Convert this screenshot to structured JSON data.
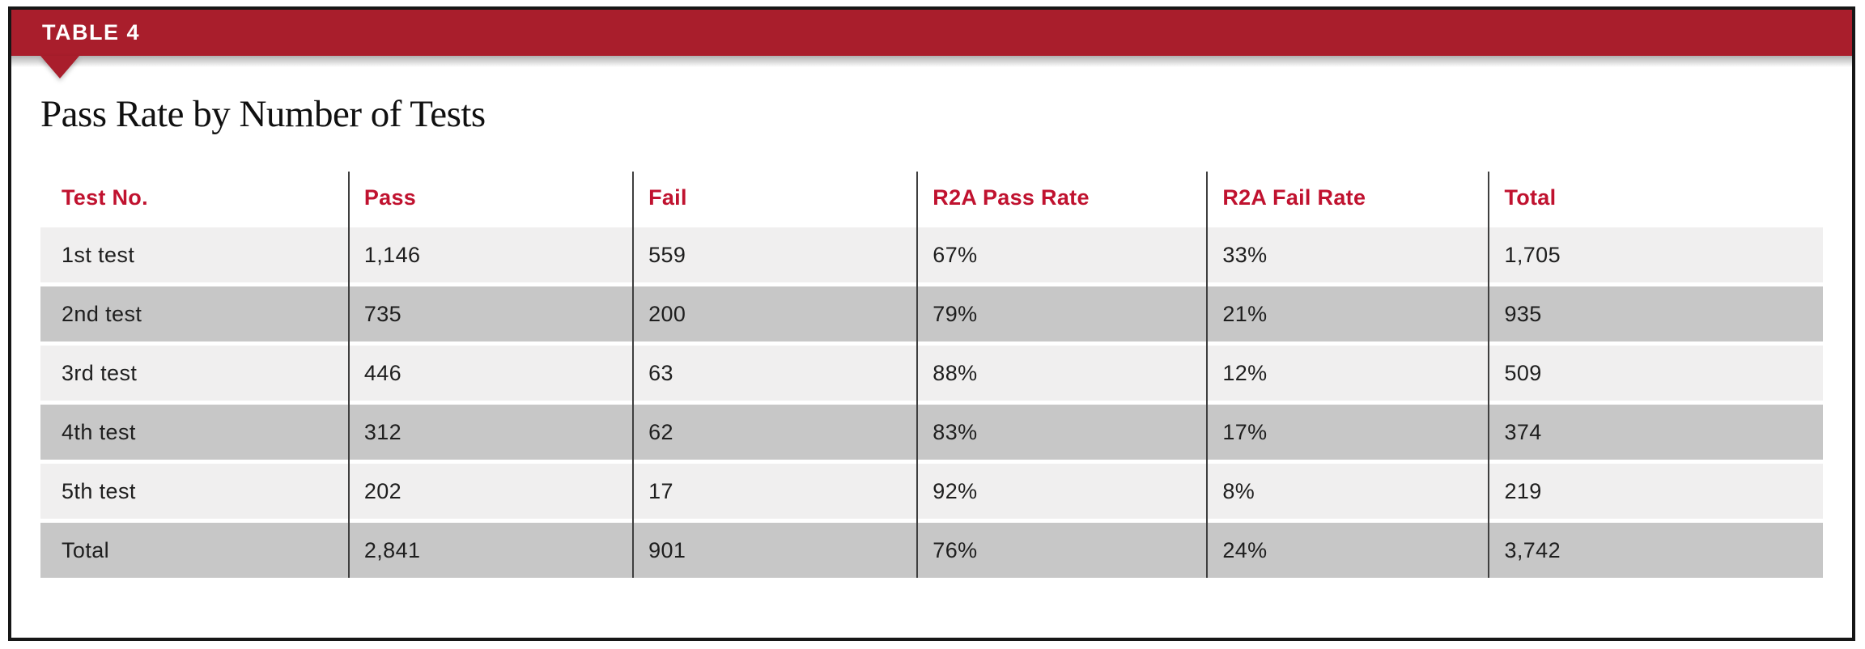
{
  "banner": {
    "label": "TABLE 4"
  },
  "title": "Pass Rate by Number of Tests",
  "colors": {
    "banner_red": "#A91E2C",
    "header_text_red": "#C0122F",
    "row_light_gray": "#F0EFEF",
    "row_dark_gray": "#C7C7C7",
    "divider_dark": "#3F3F3F",
    "frame_border": "#161616"
  },
  "table": {
    "columns": [
      "Test No.",
      "Pass",
      "Fail",
      "R2A Pass Rate",
      "R2A Fail Rate",
      "Total"
    ],
    "rows": [
      {
        "cells": [
          "1st test",
          "1,146",
          "559",
          "67%",
          "33%",
          "1,705"
        ]
      },
      {
        "cells": [
          "2nd test",
          "735",
          "200",
          "79%",
          "21%",
          "935"
        ]
      },
      {
        "cells": [
          "3rd test",
          "446",
          "63",
          "88%",
          "12%",
          "509"
        ]
      },
      {
        "cells": [
          "4th test",
          "312",
          "62",
          "83%",
          "17%",
          "374"
        ]
      },
      {
        "cells": [
          "5th test",
          "202",
          "17",
          "92%",
          "8%",
          "219"
        ]
      },
      {
        "cells": [
          "Total",
          "2,841",
          "901",
          "76%",
          "24%",
          "3,742"
        ]
      }
    ]
  }
}
